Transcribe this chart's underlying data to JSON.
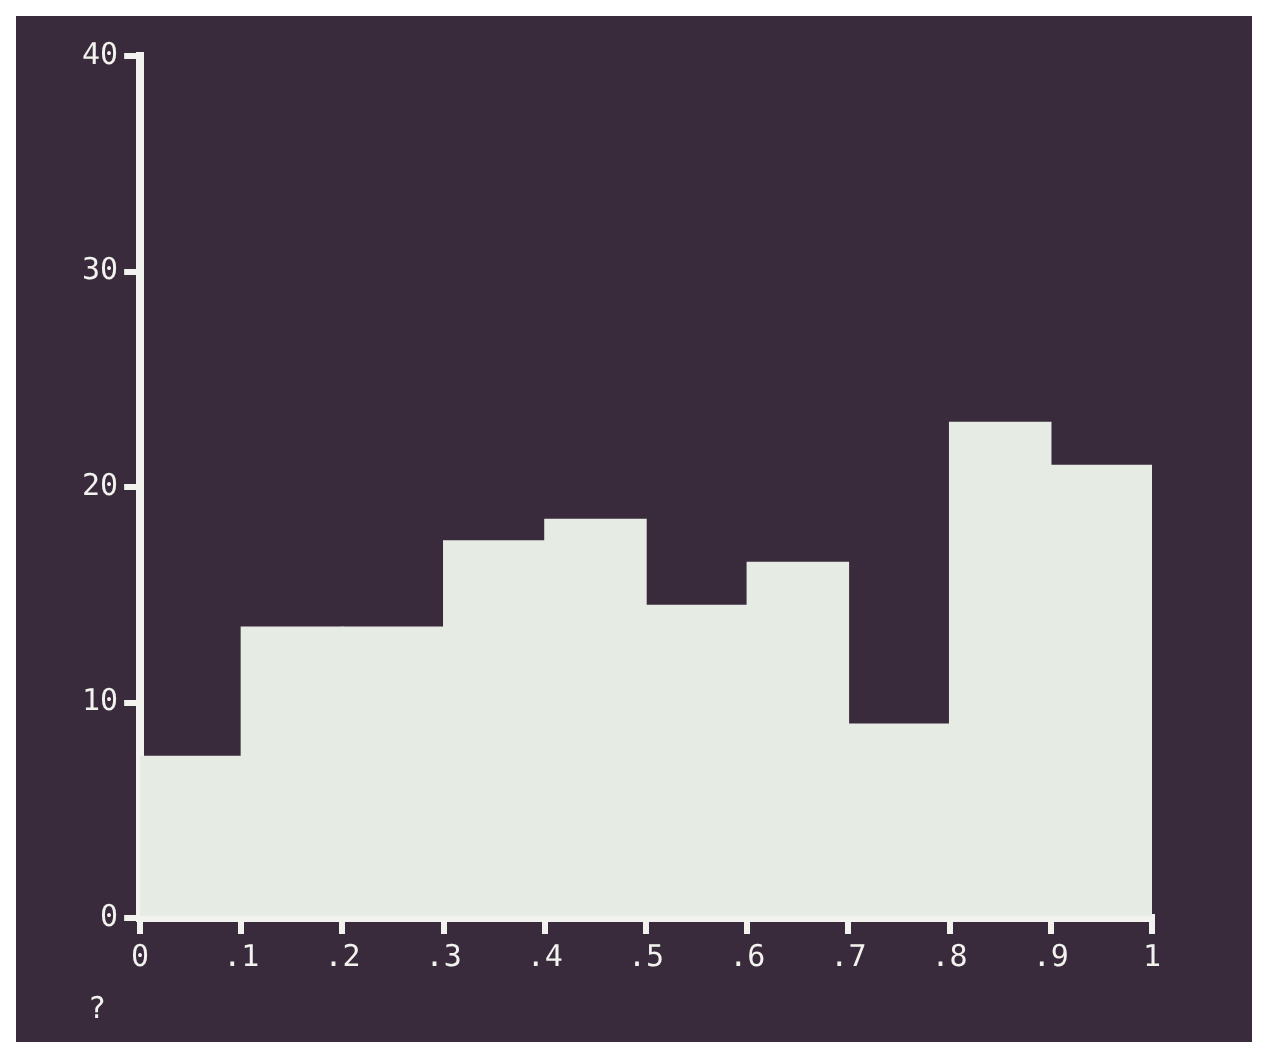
{
  "chart_data": {
    "type": "histogram",
    "bins": [
      0,
      0.1,
      0.2,
      0.3,
      0.4,
      0.5,
      0.6,
      0.7,
      0.8,
      0.9,
      1
    ],
    "values": [
      7.5,
      13.5,
      13.5,
      17.5,
      18.5,
      14.5,
      16.5,
      9,
      23,
      21
    ],
    "color": "#e6ebe4",
    "xlim": [
      0,
      1
    ],
    "xticks": [
      0,
      {
        "value": 0.1,
        "label": ".1"
      },
      {
        "value": 0.2,
        "label": ".2"
      },
      {
        "value": 0.3,
        "label": ".3"
      },
      {
        "value": 0.4,
        "label": ".4"
      },
      {
        "value": 0.5,
        "label": ".5"
      },
      {
        "value": 0.6,
        "label": ".6"
      },
      {
        "value": 0.7,
        "label": ".7"
      },
      {
        "value": 0.8,
        "label": ".8"
      },
      {
        "value": 0.9,
        "label": ".9"
      },
      1
    ],
    "ylim": [
      0,
      40
    ],
    "yticks": [
      0,
      10,
      20,
      30,
      40
    ],
    "grid": false,
    "legend": false,
    "annotations": [
      "?"
    ]
  }
}
